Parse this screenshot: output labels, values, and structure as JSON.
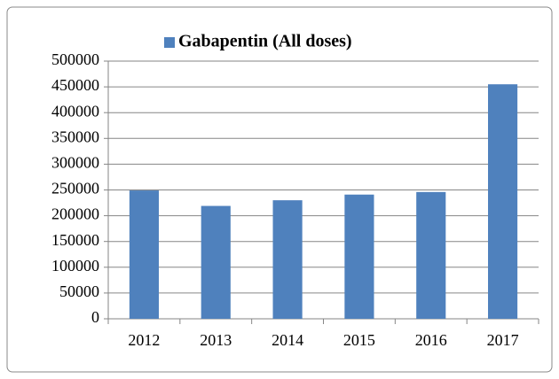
{
  "chart_data": {
    "type": "bar",
    "categories": [
      "2012",
      "2013",
      "2014",
      "2015",
      "2016",
      "2017"
    ],
    "series": [
      {
        "name": "Gabapentin (All doses)",
        "color": "#4f81bd",
        "values": [
          249000,
          219000,
          230000,
          241000,
          246000,
          455000
        ]
      }
    ],
    "ylim": [
      0,
      500000
    ],
    "yticks": [
      0,
      50000,
      100000,
      150000,
      200000,
      250000,
      300000,
      350000,
      400000,
      450000,
      500000
    ],
    "grid": true,
    "legend": "top"
  }
}
